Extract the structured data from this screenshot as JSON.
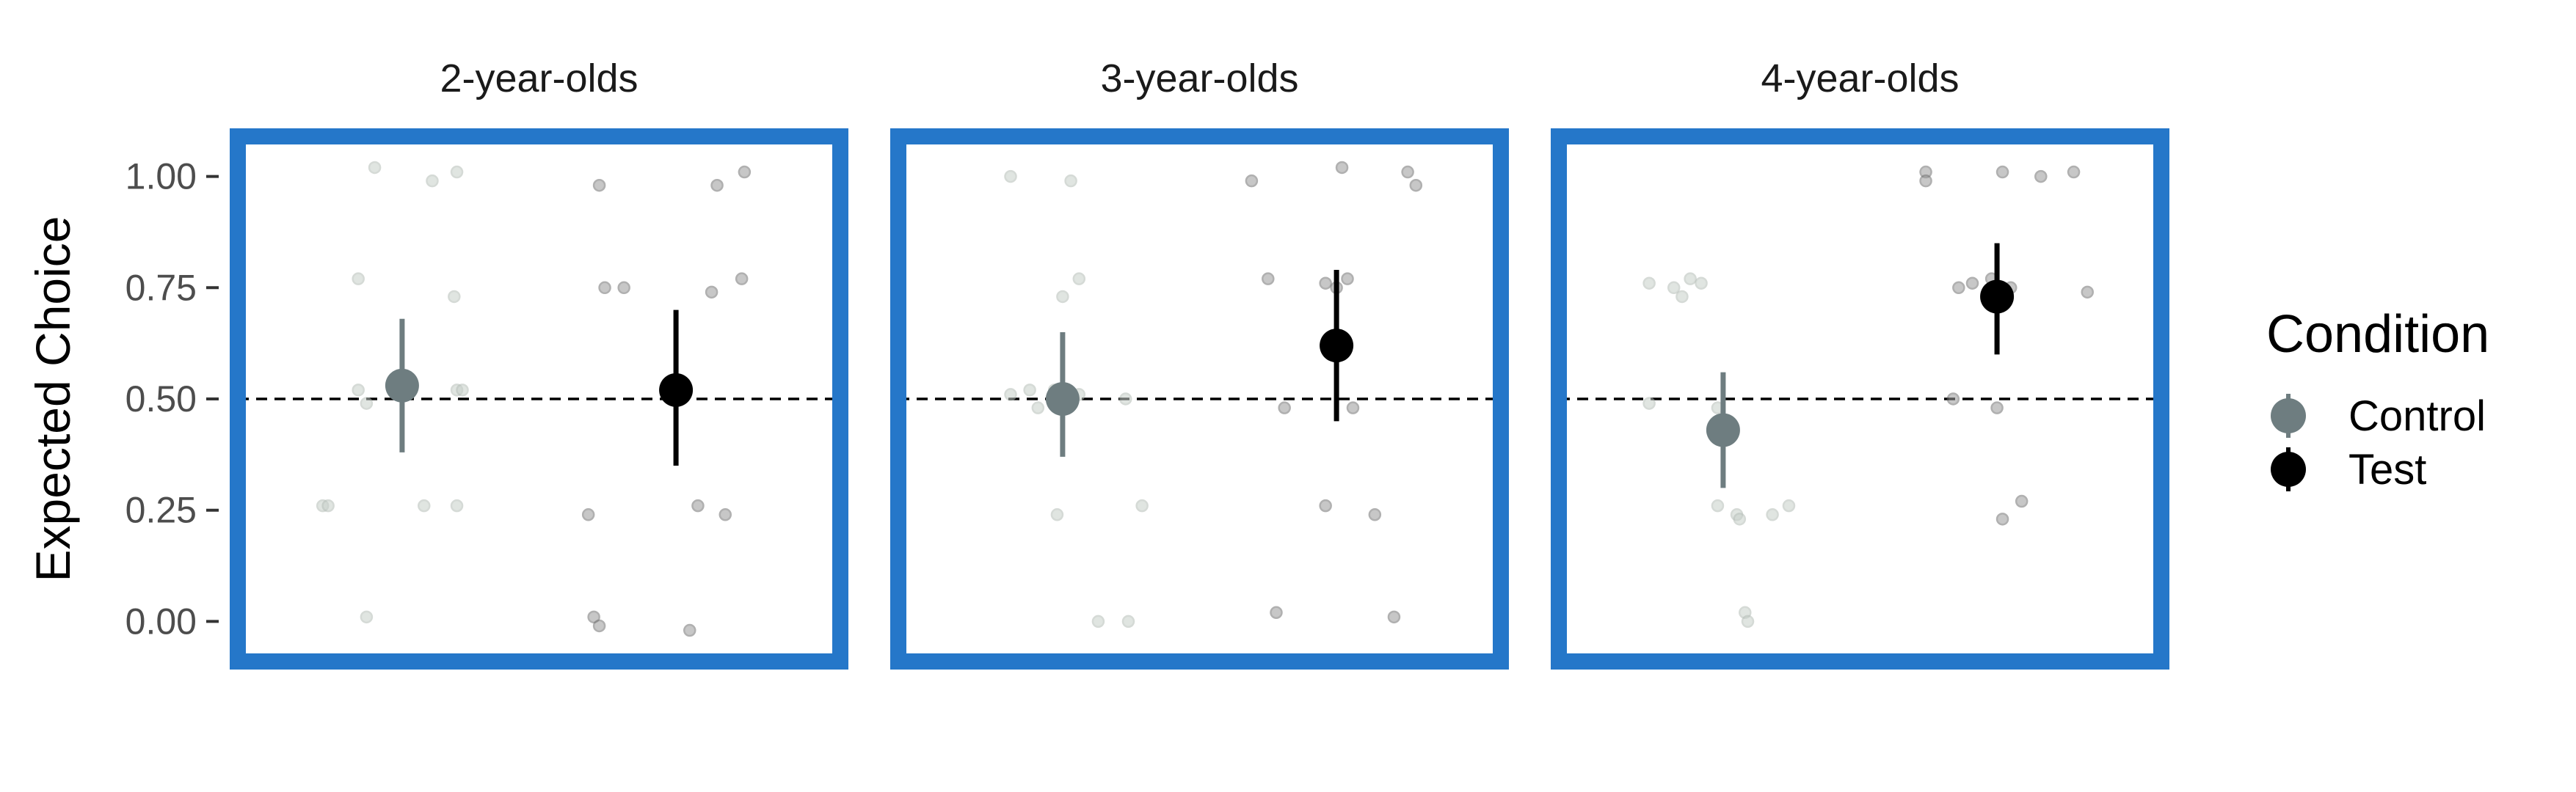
{
  "chart_data": {
    "type": "scatter",
    "ylabel": "Expected Choice",
    "ylim": [
      -0.09,
      1.09
    ],
    "yticks": [
      0,
      0.25,
      0.5,
      0.75,
      1
    ],
    "ytick_labels": [
      "0.00",
      "0.25",
      "0.50",
      "0.75",
      "1.00"
    ],
    "reference_line": 0.5,
    "legend": {
      "title": "Condition",
      "position": "right",
      "items": [
        {
          "label": "Control",
          "color": "#6e7d80"
        },
        {
          "label": "Test",
          "color": "#000000"
        }
      ]
    },
    "panel_border_color": "#2577c9",
    "categories": [
      "Control",
      "Test"
    ],
    "panels": [
      {
        "title": "2-year-olds",
        "series": [
          {
            "condition": "Control",
            "mean": 0.53,
            "ci": [
              0.38,
              0.68
            ],
            "points": [
              [
                0.9,
                1.02
              ],
              [
                1.11,
                0.99
              ],
              [
                1.2,
                1.01
              ],
              [
                0.84,
                0.77
              ],
              [
                1.19,
                0.73
              ],
              [
                0.84,
                0.52
              ],
              [
                0.87,
                0.49
              ],
              [
                1.2,
                0.52
              ],
              [
                1.22,
                0.52
              ],
              [
                0.71,
                0.26
              ],
              [
                0.73,
                0.26
              ],
              [
                1.08,
                0.26
              ],
              [
                1.2,
                0.26
              ],
              [
                0.87,
                0.01
              ]
            ]
          },
          {
            "condition": "Test",
            "mean": 0.52,
            "ci": [
              0.35,
              0.7
            ],
            "points": [
              [
                1.72,
                0.98
              ],
              [
                2.15,
                0.98
              ],
              [
                2.25,
                1.01
              ],
              [
                1.74,
                0.75
              ],
              [
                1.81,
                0.75
              ],
              [
                2.13,
                0.74
              ],
              [
                2.24,
                0.77
              ],
              [
                2.02,
                0.51
              ],
              [
                1.68,
                0.24
              ],
              [
                2.08,
                0.26
              ],
              [
                2.18,
                0.24
              ],
              [
                1.7,
                0.01
              ],
              [
                1.72,
                -0.01
              ],
              [
                2.05,
                -0.02
              ]
            ]
          }
        ]
      },
      {
        "title": "3-year-olds",
        "series": [
          {
            "condition": "Control",
            "mean": 0.5,
            "ci": [
              0.37,
              0.65
            ],
            "points": [
              [
                0.81,
                1.0
              ],
              [
                1.03,
                0.99
              ],
              [
                1.06,
                0.77
              ],
              [
                1.0,
                0.73
              ],
              [
                0.81,
                0.51
              ],
              [
                0.88,
                0.52
              ],
              [
                0.91,
                0.48
              ],
              [
                0.97,
                0.52
              ],
              [
                1.06,
                0.51
              ],
              [
                1.23,
                0.5
              ],
              [
                0.98,
                0.24
              ],
              [
                1.29,
                0.26
              ],
              [
                1.13,
                0.0
              ],
              [
                1.24,
                0.0
              ]
            ]
          },
          {
            "condition": "Test",
            "mean": 0.62,
            "ci": [
              0.45,
              0.79
            ],
            "points": [
              [
                1.69,
                0.99
              ],
              [
                2.02,
                1.02
              ],
              [
                2.26,
                1.01
              ],
              [
                2.29,
                0.98
              ],
              [
                1.75,
                0.77
              ],
              [
                1.96,
                0.76
              ],
              [
                2.04,
                0.77
              ],
              [
                2.0,
                0.75
              ],
              [
                1.81,
                0.48
              ],
              [
                2.06,
                0.48
              ],
              [
                1.96,
                0.26
              ],
              [
                2.14,
                0.24
              ],
              [
                1.78,
                0.02
              ],
              [
                2.21,
                0.01
              ]
            ]
          }
        ]
      },
      {
        "title": "4-year-olds",
        "series": [
          {
            "condition": "Control",
            "mean": 0.43,
            "ci": [
              0.3,
              0.56
            ],
            "points": [
              [
                0.73,
                0.76
              ],
              [
                0.82,
                0.75
              ],
              [
                0.85,
                0.73
              ],
              [
                0.88,
                0.77
              ],
              [
                0.92,
                0.76
              ],
              [
                0.73,
                0.49
              ],
              [
                0.98,
                0.48
              ],
              [
                0.98,
                0.26
              ],
              [
                1.05,
                0.24
              ],
              [
                1.06,
                0.23
              ],
              [
                1.18,
                0.24
              ],
              [
                1.24,
                0.26
              ],
              [
                1.08,
                0.02
              ],
              [
                1.09,
                0.0
              ]
            ]
          },
          {
            "condition": "Test",
            "mean": 0.73,
            "ci": [
              0.6,
              0.85
            ],
            "points": [
              [
                1.74,
                1.01
              ],
              [
                1.74,
                0.99
              ],
              [
                2.02,
                1.01
              ],
              [
                2.16,
                1.0
              ],
              [
                2.28,
                1.01
              ],
              [
                1.86,
                0.75
              ],
              [
                1.91,
                0.76
              ],
              [
                1.98,
                0.77
              ],
              [
                2.05,
                0.75
              ],
              [
                2.33,
                0.74
              ],
              [
                1.84,
                0.5
              ],
              [
                2.0,
                0.48
              ],
              [
                2.09,
                0.27
              ],
              [
                2.02,
                0.23
              ]
            ]
          }
        ]
      }
    ]
  }
}
